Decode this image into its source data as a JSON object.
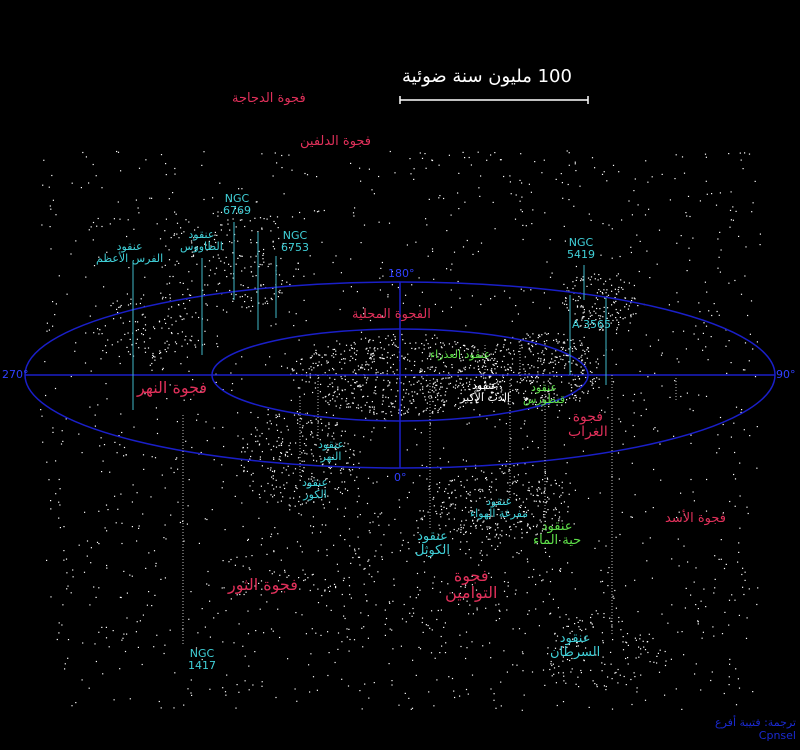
{
  "scale": {
    "label": "100 مليون سنة ضوئية"
  },
  "axes": {
    "deg0": "0°",
    "deg90": "90°",
    "deg180": "180°",
    "deg270": "270°"
  },
  "voids": {
    "pavo": "فجوة الدجاجة",
    "dolphin": "فجوة الدلفين",
    "local": "الفجوة المحلية",
    "eridanus": "فجوة النهر",
    "corvus_line1": "فجوة",
    "corvus_line2": "الغراب",
    "leo": "فجوة الأسد",
    "taurus": "فجوة الثور",
    "gemini_line1": "فجوة",
    "gemini_line2": "التوامين"
  },
  "clusters": {
    "ngc6769_line1": "NGC",
    "ngc6769_line2": "6769",
    "ngc6753_line1": "NGC",
    "ngc6753_line2": "6753",
    "ngc5419_line1": "NGC",
    "ngc5419_line2": "5419",
    "a3565": "A 3565",
    "ngc1417_line1": "NGC",
    "ngc1417_line2": "1417",
    "pavo_line1": "عنقود",
    "pavo_line2": "الطاووس",
    "pegasus_line1": "عنقود",
    "pegasus_line2": "الفرس الأعظم",
    "eridanus_line1": "عنقود",
    "eridanus_line2": "النهر",
    "fornax_line1": "عنقود",
    "fornax_line2": "الكور",
    "antlia_line1": "عنقود",
    "antlia_line2": "مفرغة الهواء",
    "ursa_line1": "عنقود",
    "ursa_line2": "الدب الأكبر",
    "dorado_line1": "عنقود",
    "dorado_line2": "الكوثل",
    "cancer_line1": "عنقود",
    "cancer_line2": "السرطان"
  },
  "green_clusters": {
    "virgo": "عنقود العذراء",
    "centaurus_line1": "عنقود",
    "centaurus_line2": "قنطورس",
    "hydra_line1": "عنقود",
    "hydra_line2": "حية الماء"
  },
  "credit": {
    "line1": "ترجمة: فتيبة أفرع",
    "line2": "Cpnsel"
  },
  "colors": {
    "void": "#e0305a",
    "cluster": "#40d0d8",
    "green": "#5fe04a",
    "axis": "#2030ff",
    "scale": "#ffffff"
  }
}
